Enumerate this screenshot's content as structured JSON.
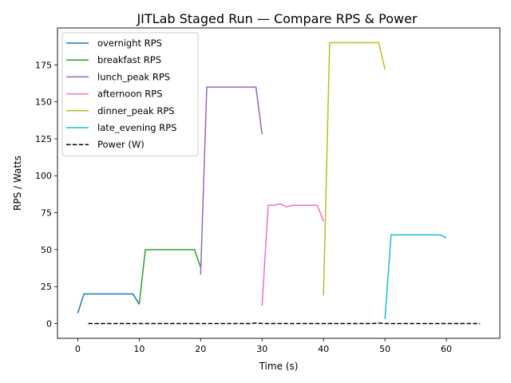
{
  "chart_data": {
    "type": "line",
    "title": "JITLab Staged Run — Compare RPS & Power",
    "xlabel": "Time (s)",
    "ylabel": "RPS / Watts",
    "xlim": [
      -3.3,
      68.7
    ],
    "ylim": [
      -10,
      200
    ],
    "xticks": [
      0,
      10,
      20,
      30,
      40,
      50,
      60
    ],
    "yticks": [
      0,
      25,
      50,
      75,
      100,
      125,
      150,
      175
    ],
    "grid": false,
    "legend_position": "upper left",
    "series": [
      {
        "name": "overnight RPS",
        "color": "#1f77b4",
        "dash": "solid",
        "x": [
          0,
          1,
          2,
          3,
          4,
          5,
          6,
          7,
          8,
          9,
          10
        ],
        "y": [
          7,
          20,
          20,
          20,
          20,
          20,
          20,
          20,
          20,
          20,
          13
        ]
      },
      {
        "name": "breakfast RPS",
        "color": "#2ca02c",
        "dash": "solid",
        "x": [
          10,
          11,
          12,
          13,
          14,
          15,
          16,
          17,
          18,
          19,
          20
        ],
        "y": [
          13,
          50,
          50,
          50,
          50,
          50,
          50,
          50,
          50,
          50,
          38
        ]
      },
      {
        "name": "lunch_peak RPS",
        "color": "#9467bd",
        "dash": "solid",
        "x": [
          20,
          21,
          22,
          23,
          24,
          25,
          26,
          27,
          28,
          29,
          30
        ],
        "y": [
          33,
          160,
          160,
          160,
          160,
          160,
          160,
          160,
          160,
          160,
          128
        ]
      },
      {
        "name": "afternoon RPS",
        "color": "#e377c2",
        "dash": "solid",
        "x": [
          30,
          31,
          32,
          33,
          34,
          35,
          36,
          37,
          38,
          39,
          40
        ],
        "y": [
          12,
          80,
          80,
          81,
          79,
          80,
          80,
          80,
          80,
          80,
          69
        ]
      },
      {
        "name": "dinner_peak RPS",
        "color": "#bcbd22",
        "dash": "solid",
        "x": [
          40,
          41,
          42,
          43,
          44,
          45,
          46,
          47,
          48,
          49,
          50
        ],
        "y": [
          19,
          190,
          190,
          190,
          190,
          190,
          190,
          190,
          190,
          190,
          172
        ]
      },
      {
        "name": "late_evening RPS",
        "color": "#17becf",
        "dash": "solid",
        "x": [
          50,
          51,
          52,
          53,
          54,
          55,
          56,
          57,
          58,
          59,
          60
        ],
        "y": [
          3,
          60,
          60,
          60,
          60,
          60,
          60,
          60,
          60,
          60,
          58
        ]
      },
      {
        "name": "Power (W)",
        "color": "#000000",
        "dash": "dashed",
        "x": [
          1.7,
          5,
          10,
          15,
          20,
          25,
          28,
          29,
          30,
          35,
          40,
          45,
          48,
          49,
          50,
          55,
          60,
          65.5
        ],
        "y": [
          0,
          0,
          0,
          0,
          0,
          0,
          0,
          0.3,
          0,
          0,
          0,
          0,
          0,
          0.3,
          0,
          0,
          0,
          0
        ]
      }
    ]
  }
}
